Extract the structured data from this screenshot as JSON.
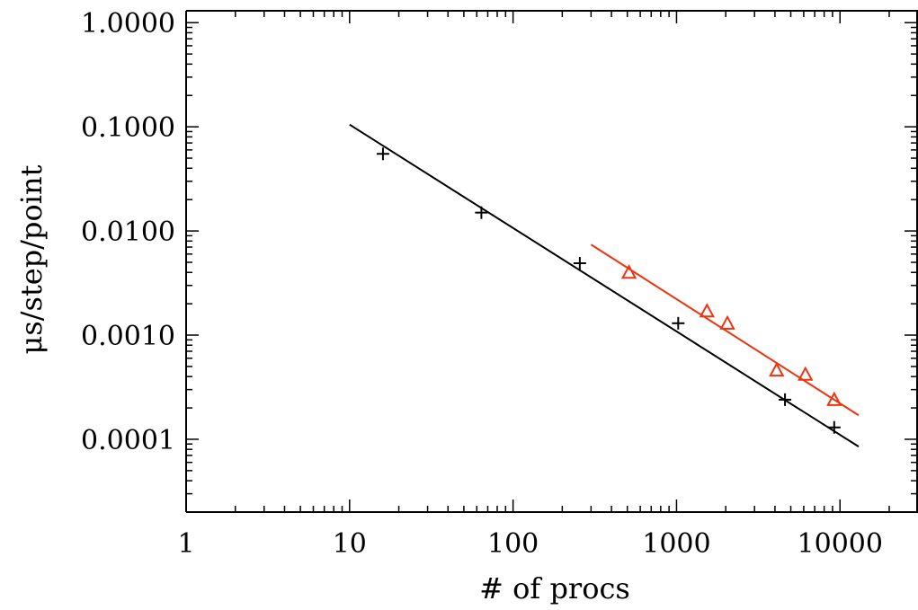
{
  "chart_data": {
    "type": "scatter",
    "xscale": "log",
    "yscale": "log",
    "xlim": [
      1,
      30000
    ],
    "ylim": [
      2e-05,
      1.3
    ],
    "xlabel": "# of procs",
    "ylabel": "μs/step/point",
    "xticks": [
      {
        "value": 1,
        "label": "1"
      },
      {
        "value": 10,
        "label": "10"
      },
      {
        "value": 100,
        "label": "100"
      },
      {
        "value": 1000,
        "label": "1000"
      },
      {
        "value": 10000,
        "label": "10000"
      }
    ],
    "yticks": [
      {
        "value": 0.0001,
        "label": "0.0001"
      },
      {
        "value": 0.001,
        "label": "0.0010"
      },
      {
        "value": 0.01,
        "label": "0.0100"
      },
      {
        "value": 0.1,
        "label": "0.1000"
      },
      {
        "value": 1,
        "label": "1.0000"
      }
    ],
    "grid": false,
    "series": [
      {
        "marker": "plus",
        "color": "#000000",
        "x": [
          16,
          64,
          256,
          1024,
          4608,
          9216
        ],
        "y": [
          0.055,
          0.015,
          0.0049,
          0.0013,
          0.00024,
          0.00013
        ],
        "fit_line": {
          "x": [
            10,
            13000
          ],
          "y": [
            0.105,
            8.5e-05
          ]
        }
      },
      {
        "marker": "triangle",
        "color": "#ee3311",
        "x": [
          512,
          1536,
          2048,
          4096,
          6144,
          9216
        ],
        "y": [
          0.004,
          0.0017,
          0.0013,
          0.00046,
          0.00042,
          0.00024
        ],
        "fit_line": {
          "x": [
            300,
            13000
          ],
          "y": [
            0.0074,
            0.00017
          ]
        }
      }
    ]
  }
}
